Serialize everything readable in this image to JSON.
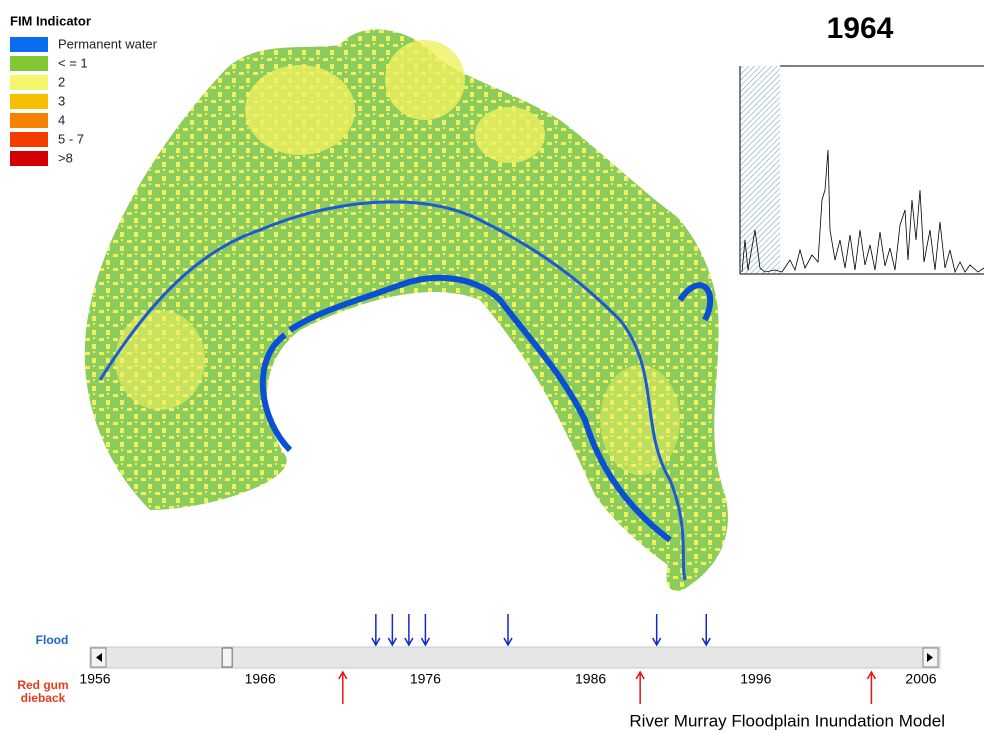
{
  "legend": {
    "title": "FIM Indicator",
    "items": [
      {
        "label": "Permanent water",
        "color": "#0a6cf0"
      },
      {
        "label": "< = 1",
        "color": "#82c832"
      },
      {
        "label": "2",
        "color": "#f5f56e"
      },
      {
        "label": "3",
        "color": "#f5be00"
      },
      {
        "label": "4",
        "color": "#f58200"
      },
      {
        "label": "5 - 7",
        "color": "#f53c00"
      },
      {
        "label": ">8",
        "color": "#d20000"
      }
    ]
  },
  "current_year": 1964,
  "timeline": {
    "flood_label": "Flood",
    "dieback_label": [
      "Red gum",
      "dieback"
    ],
    "xlim": [
      1956,
      2006
    ],
    "xticks": [
      1956,
      1966,
      1976,
      1986,
      1996,
      2006
    ],
    "flood_years": [
      1973,
      1974,
      1975,
      1976,
      1981,
      1990,
      1993
    ],
    "dieback_years": [
      1971,
      1989,
      2003
    ]
  },
  "footer": "River Murray Floodplain Inundation Model"
}
